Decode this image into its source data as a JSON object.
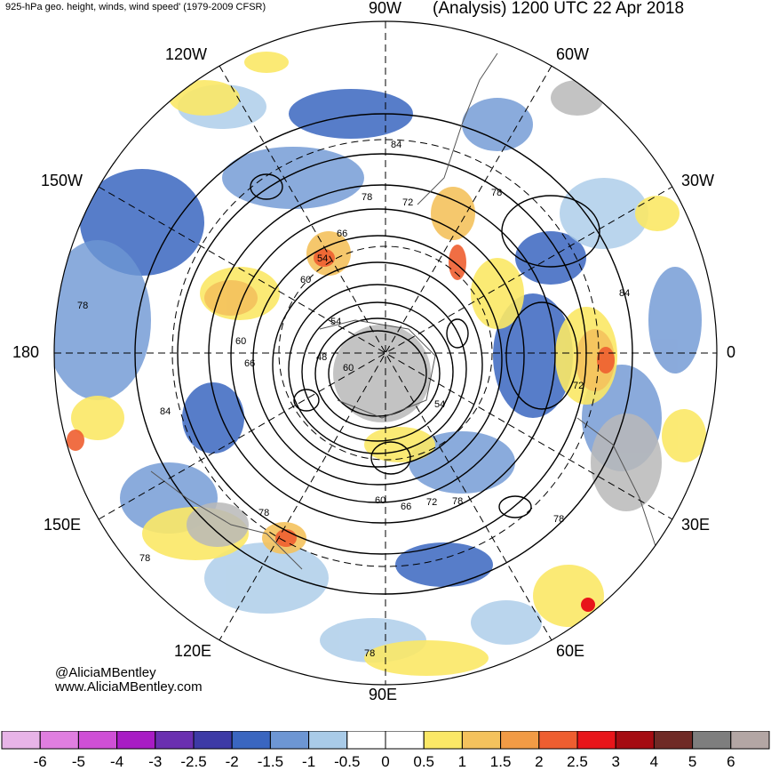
{
  "header": {
    "left_title": "925-hPa geo. height, winds, wind speed' (1979-2009 CFSR)",
    "right_title": "(Analysis) 1200 UTC 22 Apr 2018"
  },
  "longitude_labels": {
    "top": "90W",
    "bottom": "90E",
    "left": "180",
    "right": "0",
    "upper_left": "120W",
    "upper_right": "60W",
    "mid_upper_left": "150W",
    "mid_upper_right": "30W",
    "mid_lower_left": "150E",
    "mid_lower_right": "30E",
    "lower_left": "120E",
    "lower_right": "60E"
  },
  "contour_labels": [
    "84",
    "78",
    "72",
    "66",
    "54",
    "60",
    "78",
    "60",
    "54",
    "48",
    "60",
    "66",
    "54",
    "84",
    "72",
    "78",
    "66",
    "60",
    "72",
    "78",
    "78",
    "84",
    "78",
    "78",
    "78"
  ],
  "credit": {
    "handle": "@AliciaMBentley",
    "url": "www.AliciaMBentley.com"
  },
  "colorbar": {
    "labels": [
      "-6",
      "-5",
      "-4",
      "-3",
      "-2.5",
      "-2",
      "-1.5",
      "-1",
      "-0.5",
      "0",
      "0.5",
      "1",
      "1.5",
      "2",
      "2.5",
      "3",
      "4",
      "5",
      "6"
    ],
    "colors": [
      "#e8b4e8",
      "#e07ee0",
      "#cf4fd6",
      "#a81cc4",
      "#6a2fb0",
      "#3d3aa6",
      "#3a66c0",
      "#6d96d3",
      "#a9cbe8",
      "#ffffff",
      "#ffffff",
      "#fbe866",
      "#f4c25d",
      "#f29b45",
      "#ee5e30",
      "#e8151a",
      "#a50c12",
      "#6f2a26",
      "#7e7e7e",
      "#b3a6a4"
    ]
  }
}
